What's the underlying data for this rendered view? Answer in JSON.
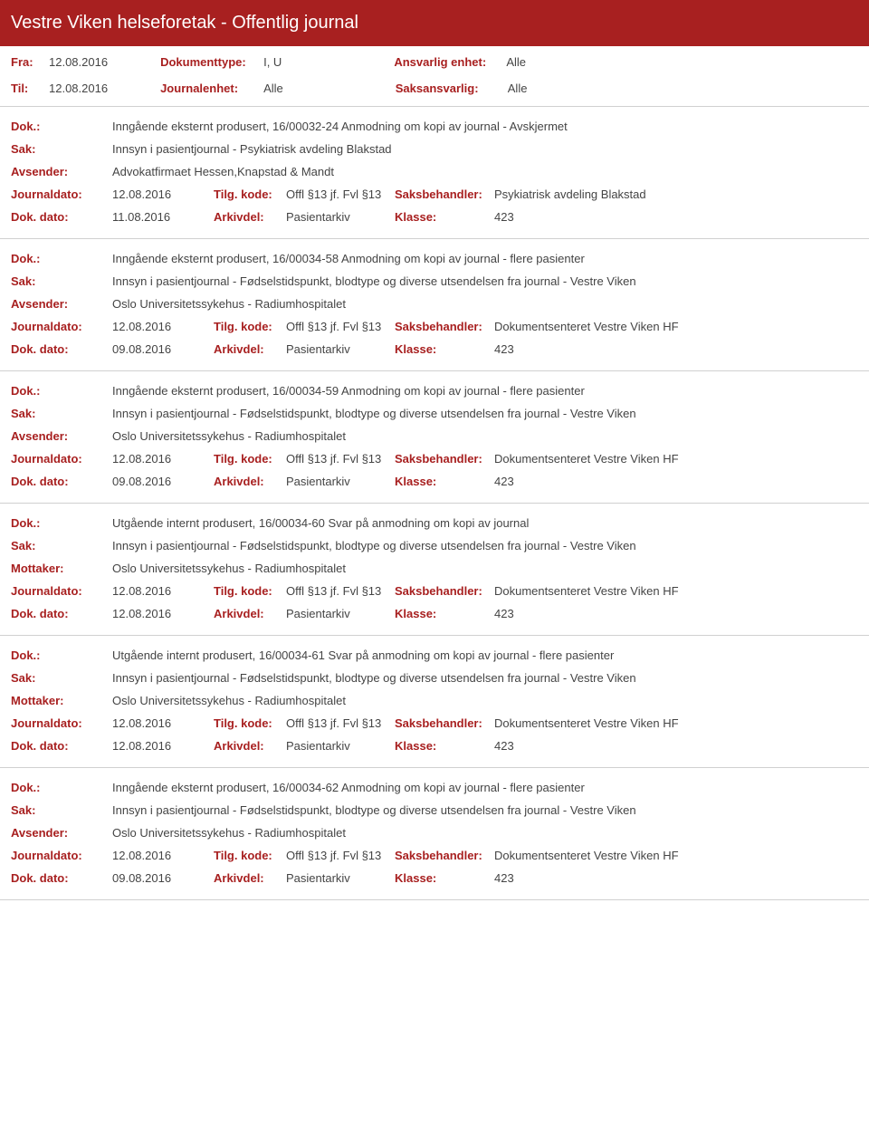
{
  "header": {
    "title": "Vestre Viken helseforetak - Offentlig journal"
  },
  "filters": {
    "fra_label": "Fra:",
    "fra_value": "12.08.2016",
    "til_label": "Til:",
    "til_value": "12.08.2016",
    "dokumenttype_label": "Dokumenttype:",
    "dokumenttype_value": "I, U",
    "journalenhet_label": "Journalenhet:",
    "journalenhet_value": "Alle",
    "ansvarlig_label": "Ansvarlig enhet:",
    "ansvarlig_value": "Alle",
    "saksansvarlig_label": "Saksansvarlig:",
    "saksansvarlig_value": "Alle"
  },
  "labels": {
    "dok": "Dok.:",
    "sak": "Sak:",
    "avsender": "Avsender:",
    "mottaker": "Mottaker:",
    "journaldato": "Journaldato:",
    "tilgkode": "Tilg. kode:",
    "saksbehandler": "Saksbehandler:",
    "dokdato": "Dok. dato:",
    "arkivdel": "Arkivdel:",
    "klasse": "Klasse:"
  },
  "entries": [
    {
      "dok": "Inngående eksternt produsert, 16/00032-24 Anmodning om kopi av journal - Avskjermet",
      "sak": "Innsyn i pasientjournal - Psykiatrisk avdeling Blakstad",
      "party_label": "avsender",
      "party": "Advokatfirmaet Hessen,Knapstad & Mandt",
      "journaldato": "12.08.2016",
      "tilgkode": "Offl §13 jf. Fvl §13",
      "saksbehandler": "Psykiatrisk avdeling Blakstad",
      "dokdato": "11.08.2016",
      "arkivdel": "Pasientarkiv",
      "klasse": "423"
    },
    {
      "dok": "Inngående eksternt produsert, 16/00034-58 Anmodning om kopi av journal - flere pasienter",
      "sak": "Innsyn i pasientjournal - Fødselstidspunkt, blodtype og diverse utsendelsen fra journal - Vestre Viken",
      "party_label": "avsender",
      "party": "Oslo Universitetssykehus  - Radiumhospitalet",
      "journaldato": "12.08.2016",
      "tilgkode": "Offl §13 jf. Fvl §13",
      "saksbehandler": "Dokumentsenteret Vestre Viken HF",
      "dokdato": "09.08.2016",
      "arkivdel": "Pasientarkiv",
      "klasse": "423"
    },
    {
      "dok": "Inngående eksternt produsert, 16/00034-59 Anmodning om kopi av journal - flere pasienter",
      "sak": "Innsyn i pasientjournal - Fødselstidspunkt, blodtype og diverse utsendelsen fra journal - Vestre Viken",
      "party_label": "avsender",
      "party": "Oslo Universitetssykehus  - Radiumhospitalet",
      "journaldato": "12.08.2016",
      "tilgkode": "Offl §13 jf. Fvl §13",
      "saksbehandler": "Dokumentsenteret Vestre Viken HF",
      "dokdato": "09.08.2016",
      "arkivdel": "Pasientarkiv",
      "klasse": "423"
    },
    {
      "dok": "Utgående internt produsert, 16/00034-60 Svar på anmodning om kopi av journal",
      "sak": "Innsyn i pasientjournal - Fødselstidspunkt, blodtype og diverse utsendelsen fra journal - Vestre Viken",
      "party_label": "mottaker",
      "party": "Oslo Universitetssykehus  - Radiumhospitalet",
      "journaldato": "12.08.2016",
      "tilgkode": "Offl §13 jf. Fvl §13",
      "saksbehandler": "Dokumentsenteret Vestre Viken HF",
      "dokdato": "12.08.2016",
      "arkivdel": "Pasientarkiv",
      "klasse": "423"
    },
    {
      "dok": "Utgående internt produsert, 16/00034-61 Svar på anmodning om kopi av journal - flere pasienter",
      "sak": "Innsyn i pasientjournal - Fødselstidspunkt, blodtype og diverse utsendelsen fra journal - Vestre Viken",
      "party_label": "mottaker",
      "party": "Oslo Universitetssykehus  - Radiumhospitalet",
      "journaldato": "12.08.2016",
      "tilgkode": "Offl §13 jf. Fvl §13",
      "saksbehandler": "Dokumentsenteret Vestre Viken HF",
      "dokdato": "12.08.2016",
      "arkivdel": "Pasientarkiv",
      "klasse": "423"
    },
    {
      "dok": "Inngående eksternt produsert, 16/00034-62 Anmodning om kopi av journal - flere pasienter",
      "sak": "Innsyn i pasientjournal - Fødselstidspunkt, blodtype og diverse utsendelsen fra journal - Vestre Viken",
      "party_label": "avsender",
      "party": "Oslo Universitetssykehus  - Radiumhospitalet",
      "journaldato": "12.08.2016",
      "tilgkode": "Offl §13 jf. Fvl §13",
      "saksbehandler": "Dokumentsenteret Vestre Viken HF",
      "dokdato": "09.08.2016",
      "arkivdel": "Pasientarkiv",
      "klasse": "423"
    }
  ]
}
